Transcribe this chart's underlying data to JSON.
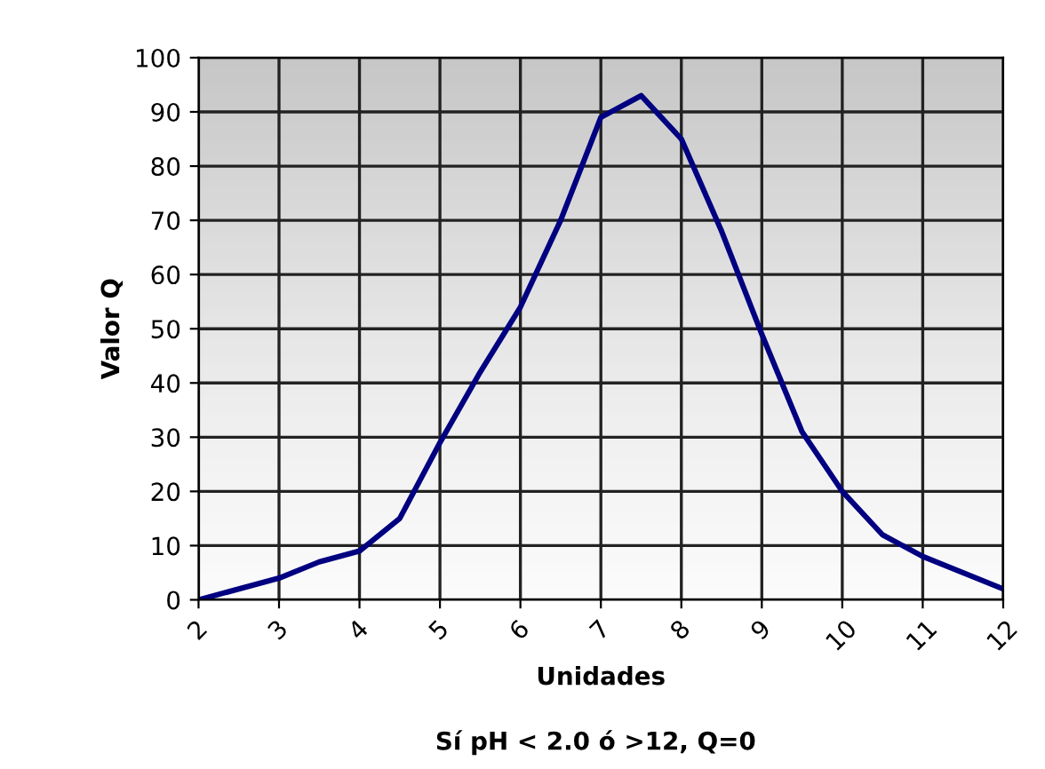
{
  "chart_data": {
    "type": "line",
    "xlabel": "Unidades",
    "ylabel": "Valor Q",
    "annotations": [
      "Sí pH < 2.0 ó >12, Q=0"
    ],
    "x": [
      2,
      3,
      3.5,
      4,
      4.5,
      5,
      5.5,
      6,
      6.5,
      7,
      7.5,
      8,
      8.5,
      9,
      9.5,
      10,
      10.5,
      11,
      12
    ],
    "series": [
      {
        "color": "#000080",
        "values": [
          0,
          4,
          7,
          9,
          15,
          29,
          42,
          54,
          70,
          89,
          93,
          85,
          68,
          49,
          31,
          20,
          12,
          8,
          2
        ]
      }
    ],
    "xlim": [
      2,
      12
    ],
    "xticks": [
      2,
      3,
      4,
      5,
      6,
      7,
      8,
      9,
      10,
      11,
      12
    ],
    "ylim": [
      0,
      100
    ],
    "yticks": [
      0,
      10,
      20,
      30,
      40,
      50,
      60,
      70,
      80,
      90,
      100
    ],
    "grid": true,
    "marker": "none",
    "line_style": "solid"
  }
}
